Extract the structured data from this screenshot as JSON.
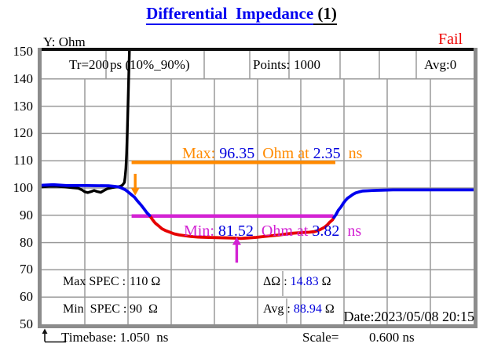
{
  "window": {
    "title_main": "Differential  Impedance",
    "title_suffix": " (1)",
    "status": "Fail",
    "y_axis_label": "Y: Ohm"
  },
  "header_row": {
    "tr_label": "Tr=200",
    "tr_detail": "ps (10%_90%)",
    "points_label": "Points:",
    "points_value": "1000",
    "avg_label": "Avg:0"
  },
  "y_ticks": [
    "150",
    "140",
    "130",
    "120",
    "110",
    "100",
    "90",
    "80",
    "70",
    "60",
    "50"
  ],
  "annotations": {
    "max": {
      "label": "Max: ",
      "value": "96.35",
      "mid": "  Ohm at ",
      "time": "2.35",
      "unit": "  ns"
    },
    "min": {
      "label": "Min: ",
      "value": "81.52",
      "mid": "  Ohm at ",
      "time": "3.82",
      "unit": "  ns"
    }
  },
  "spec_rows": {
    "max_label": "Max SPEC :",
    "max_value": "110 Ω",
    "min_label": "Min  SPEC :",
    "min_value": "90  Ω"
  },
  "stat_rows": {
    "delta_label": "ΔΩ",
    "delta_colon": " : ",
    "delta_value": "14.83",
    "delta_unit": " Ω",
    "avg_label": "Avg",
    "avg_colon": " : ",
    "avg_value": "88.94",
    "avg_unit": " Ω"
  },
  "date_line": "Date:2023/05/08 20:15",
  "footer": {
    "timebase": "Timebase: 1.050  ns",
    "scale_label": "Scale=",
    "scale_value": "0.600 ns"
  },
  "colors": {
    "title_blue": "#0000f0",
    "value_blue": "#0000dd",
    "fail_red": "#ee0000",
    "max_orange": "#ff8a00",
    "min_magenta": "#d322d3",
    "trace_blue": "#0000ee",
    "trace_red": "#e60000",
    "trace_black": "#000000",
    "grid_gray": "#9a9a9a",
    "frame_gray": "#8c8c8c"
  },
  "chart_data": {
    "type": "line",
    "title": "Differential Impedance (1)",
    "result": "Fail",
    "ylabel": "Ohm",
    "xlabel": "ns",
    "ylim": [
      50,
      150
    ],
    "y_per_div": 10,
    "x_start_ns": 1.05,
    "x_per_div_ns": 0.6,
    "x_divs": 10,
    "points": 1000,
    "avg_count": 0,
    "rise_time": "Tr=200 ps (10%_90%)",
    "timebase_ns": 1.05,
    "scale_ns_per_div": 0.6,
    "specs": {
      "max_ohm": 110,
      "min_ohm": 90
    },
    "stats": {
      "delta_ohm": 14.83,
      "avg_ohm": 88.94
    },
    "markers": {
      "max": {
        "value_ohm": 96.35,
        "time_ns": 2.35,
        "spec_ohm": 110,
        "line_span_ns": [
          2.3,
          5.13
        ],
        "arrow": {
          "t_ns": 2.35,
          "from_ohm": 105.2,
          "to_ohm": 97.2,
          "dir": "down"
        }
      },
      "min": {
        "value_ohm": 81.52,
        "time_ns": 3.82,
        "spec_ohm": 90,
        "line_span_ns": [
          2.3,
          5.1
        ],
        "arrow": {
          "t_ns": 3.76,
          "from_ohm": 72.6,
          "to_ohm": 82.0,
          "dir": "up"
        }
      }
    },
    "series": [
      {
        "name": "step-black",
        "color": "#000000",
        "width": 3.4,
        "points": [
          [
            1.05,
            100.4
          ],
          [
            1.15,
            100.6
          ],
          [
            1.26,
            100.6
          ],
          [
            1.37,
            100.4
          ],
          [
            1.48,
            100.1
          ],
          [
            1.56,
            99.9
          ],
          [
            1.61,
            99.3
          ],
          [
            1.65,
            98.6
          ],
          [
            1.69,
            98.3
          ],
          [
            1.74,
            98.7
          ],
          [
            1.78,
            99.1
          ],
          [
            1.82,
            98.7
          ],
          [
            1.87,
            98.4
          ],
          [
            1.91,
            99.0
          ],
          [
            1.96,
            99.7
          ],
          [
            2.02,
            100.1
          ],
          [
            2.09,
            100.4
          ],
          [
            2.14,
            100.6
          ],
          [
            2.17,
            101.0
          ],
          [
            2.2,
            102.0
          ],
          [
            2.21,
            104.0
          ],
          [
            2.22,
            107.2
          ],
          [
            2.23,
            112.6
          ],
          [
            2.24,
            120.7
          ],
          [
            2.25,
            130.5
          ],
          [
            2.26,
            140.8
          ],
          [
            2.27,
            150.4
          ]
        ]
      },
      {
        "name": "impedance-red-below-spec",
        "color": "#e60000",
        "width": 3.8,
        "points": [
          [
            2.55,
            89.9
          ],
          [
            2.59,
            88.4
          ],
          [
            2.63,
            87.1
          ],
          [
            2.68,
            86.0
          ],
          [
            2.72,
            85.1
          ],
          [
            2.77,
            84.4
          ],
          [
            2.83,
            83.8
          ],
          [
            2.89,
            83.2
          ],
          [
            2.96,
            82.8
          ],
          [
            3.04,
            82.5
          ],
          [
            3.12,
            82.2
          ],
          [
            3.22,
            82.0
          ],
          [
            3.33,
            81.9
          ],
          [
            3.47,
            81.8
          ],
          [
            3.64,
            81.7
          ],
          [
            3.74,
            81.6
          ],
          [
            3.82,
            81.5
          ],
          [
            3.92,
            81.7
          ],
          [
            4.03,
            81.9
          ],
          [
            4.14,
            82.2
          ],
          [
            4.25,
            82.5
          ],
          [
            4.36,
            82.8
          ],
          [
            4.44,
            83.1
          ],
          [
            4.53,
            83.4
          ],
          [
            4.62,
            83.6
          ],
          [
            4.7,
            83.7
          ],
          [
            4.77,
            83.8
          ],
          [
            4.84,
            84.0
          ],
          [
            4.89,
            84.4
          ],
          [
            4.93,
            84.9
          ],
          [
            4.98,
            85.6
          ],
          [
            5.02,
            86.5
          ],
          [
            5.05,
            87.4
          ],
          [
            5.09,
            88.3
          ],
          [
            5.11,
            89.2
          ]
        ]
      },
      {
        "name": "impedance-blue-left",
        "color": "#0000ee",
        "width": 3.8,
        "points": [
          [
            1.05,
            101.0
          ],
          [
            1.21,
            101.2
          ],
          [
            1.4,
            100.9
          ],
          [
            1.67,
            100.9
          ],
          [
            1.98,
            100.8
          ],
          [
            2.06,
            100.6
          ],
          [
            2.12,
            100.4
          ],
          [
            2.16,
            100.0
          ],
          [
            2.21,
            99.4
          ],
          [
            2.25,
            98.6
          ],
          [
            2.29,
            97.7
          ],
          [
            2.34,
            96.6
          ],
          [
            2.38,
            95.3
          ],
          [
            2.43,
            93.8
          ],
          [
            2.47,
            92.4
          ],
          [
            2.51,
            91.0
          ],
          [
            2.55,
            89.9
          ]
        ]
      },
      {
        "name": "impedance-blue-right",
        "color": "#0000ee",
        "width": 3.8,
        "points": [
          [
            5.11,
            89.2
          ],
          [
            5.14,
            90.3
          ],
          [
            5.17,
            91.8
          ],
          [
            5.21,
            93.1
          ],
          [
            5.24,
            94.4
          ],
          [
            5.27,
            95.4
          ],
          [
            5.3,
            96.3
          ],
          [
            5.34,
            97.0
          ],
          [
            5.37,
            97.6
          ],
          [
            5.41,
            98.2
          ],
          [
            5.46,
            98.6
          ],
          [
            5.51,
            98.9
          ],
          [
            5.58,
            99.0
          ],
          [
            5.65,
            99.1
          ],
          [
            5.76,
            99.2
          ],
          [
            5.93,
            99.3
          ],
          [
            6.14,
            99.3
          ],
          [
            6.42,
            99.3
          ],
          [
            6.74,
            99.3
          ],
          [
            7.05,
            99.3
          ]
        ]
      }
    ]
  }
}
